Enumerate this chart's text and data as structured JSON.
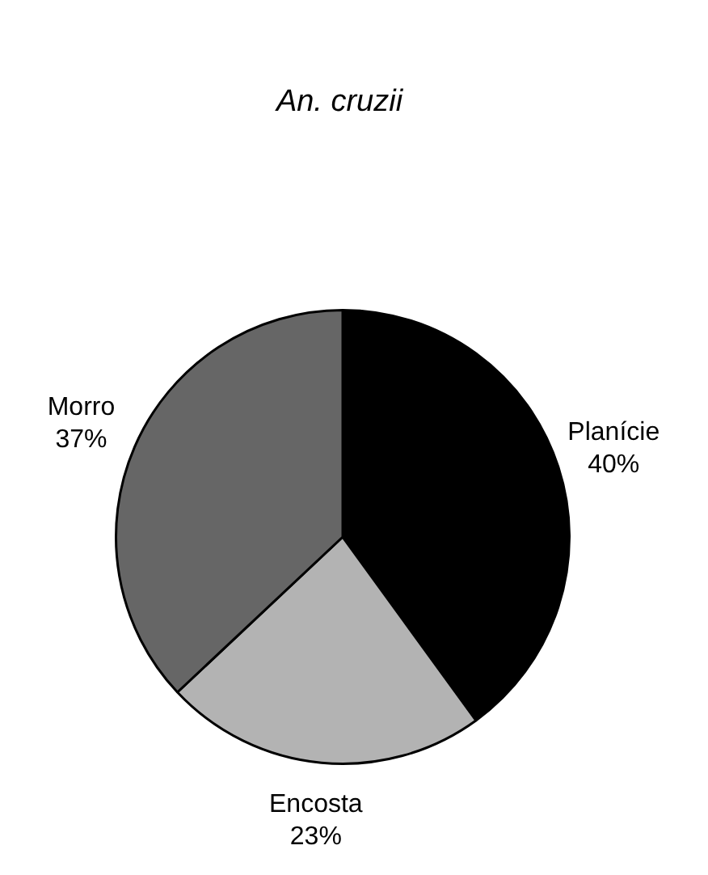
{
  "chart_data": {
    "type": "pie",
    "title": "An. cruzii",
    "categories": [
      "Planície",
      "Encosta",
      "Morro"
    ],
    "values": [
      40,
      23,
      37
    ],
    "colors": [
      "#000000",
      "#b3b3b3",
      "#666666"
    ],
    "value_labels": [
      "40%",
      "23%",
      "37%"
    ],
    "legend": false
  }
}
